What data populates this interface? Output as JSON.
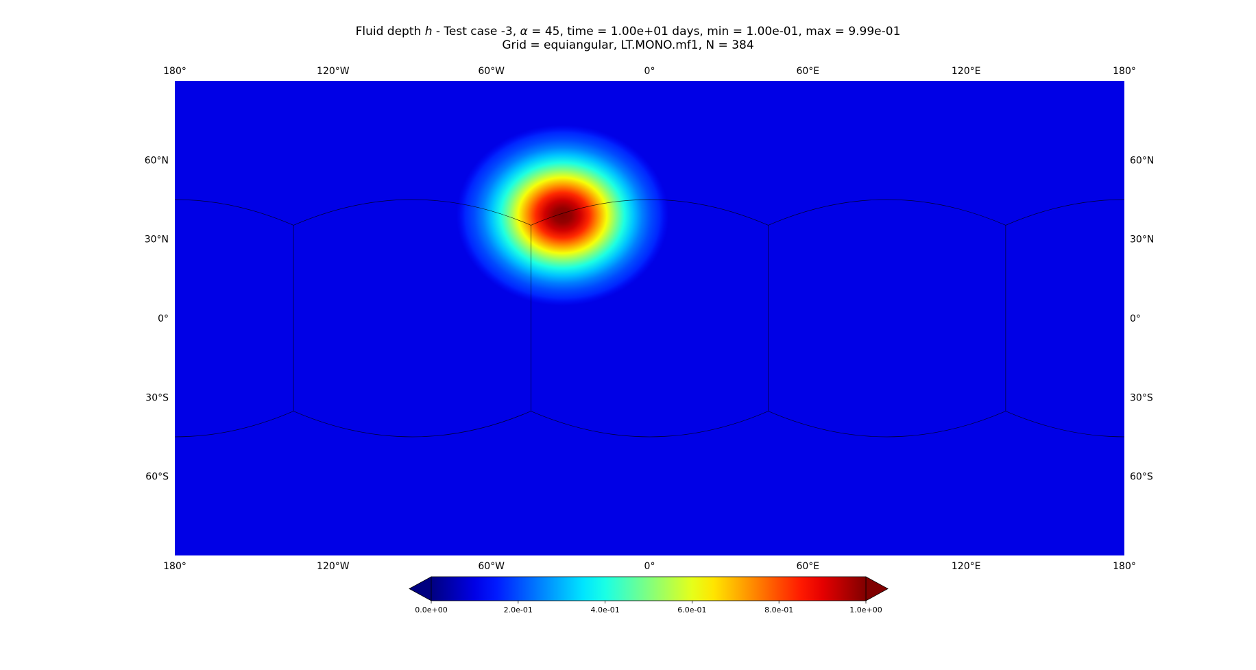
{
  "chart_data": {
    "type": "heatmap",
    "title": {
      "prefix": "Fluid depth ",
      "var": "h",
      "mid": " - Test case -3, ",
      "alpha_symbol": "α",
      "suffix": " = 45, time = 1.00e+01 days, min = 1.00e-01, max = 9.99e-01"
    },
    "subtitle": "Grid = equiangular, LT.MONO.mf1, N = 384",
    "projection": "plate carree",
    "x_range": [
      -180,
      180
    ],
    "y_range": [
      -90,
      90
    ],
    "x_ticks": [
      {
        "value": -180,
        "label": "180°"
      },
      {
        "value": -120,
        "label": "120°W"
      },
      {
        "value": -60,
        "label": "60°W"
      },
      {
        "value": 0,
        "label": "0°"
      },
      {
        "value": 60,
        "label": "60°E"
      },
      {
        "value": 120,
        "label": "120°E"
      },
      {
        "value": 180,
        "label": "180°"
      }
    ],
    "y_ticks": [
      {
        "value": 60,
        "label": "60°N"
      },
      {
        "value": 30,
        "label": "30°N"
      },
      {
        "value": 0,
        "label": "0°"
      },
      {
        "value": -30,
        "label": "30°S"
      },
      {
        "value": -60,
        "label": "60°S"
      }
    ],
    "field": {
      "background_value": 0.1,
      "peak_value": 0.999,
      "peak_lon": -33,
      "peak_lat": 39,
      "min": 0.1,
      "max": 0.999
    },
    "cube_edges": {
      "edge_lons": [
        -135,
        -45,
        45,
        135
      ],
      "boundary_lat": 35.26,
      "equator_crossing_lat": 45
    },
    "colorbar": {
      "colormap": "jet",
      "range": [
        0.0,
        1.0
      ],
      "extend": "both",
      "ticks": [
        {
          "value": 0.0,
          "label": "0.0e+00"
        },
        {
          "value": 0.2,
          "label": "2.0e-01"
        },
        {
          "value": 0.4,
          "label": "4.0e-01"
        },
        {
          "value": 0.6,
          "label": "6.0e-01"
        },
        {
          "value": 0.8,
          "label": "8.0e-01"
        },
        {
          "value": 1.0,
          "label": "1.0e+00"
        }
      ]
    }
  }
}
